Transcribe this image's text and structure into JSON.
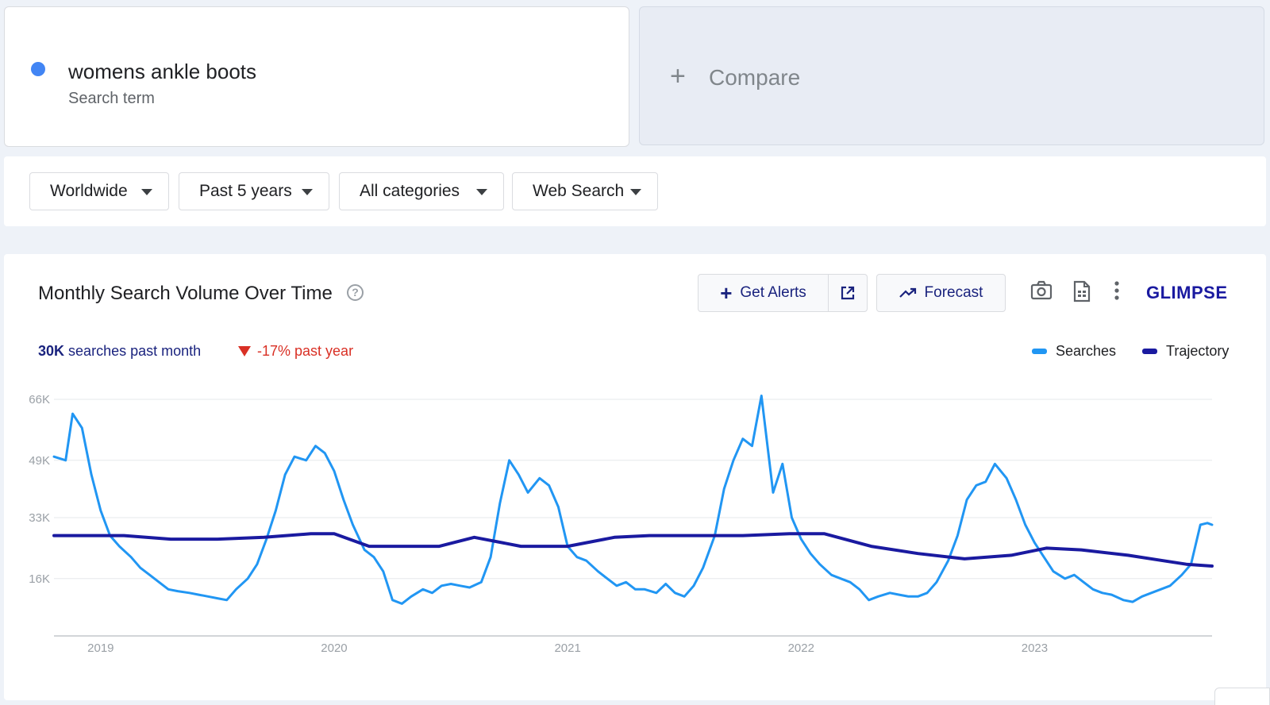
{
  "search_term": {
    "title": "womens ankle boots",
    "subtitle": "Search term",
    "dot_color": "#4285f4"
  },
  "compare": {
    "label": "Compare",
    "icon": "plus-icon"
  },
  "filters": [
    {
      "label": "Worldwide"
    },
    {
      "label": "Past 5 years"
    },
    {
      "label": "All categories"
    },
    {
      "label": "Web Search"
    }
  ],
  "chart_panel": {
    "title": "Monthly Search Volume Over Time",
    "get_alerts_label": "Get Alerts",
    "forecast_label": "Forecast",
    "logo": "GLIMPSE",
    "icons": [
      "help-icon",
      "external-link-icon",
      "trending-up-icon",
      "camera-icon",
      "spreadsheet-icon",
      "more-vert-icon"
    ]
  },
  "stats": {
    "month_value": "30K",
    "month_text": "searches past month",
    "year_change": "-17% past year",
    "year_change_color": "#d93025"
  },
  "chart_data": {
    "type": "line",
    "title": "Monthly Search Volume Over Time",
    "xlabel": "",
    "ylabel": "",
    "y_ticks": [
      16000,
      33000,
      49000,
      66000
    ],
    "y_tick_labels": [
      "16K",
      "33K",
      "49K",
      "66K"
    ],
    "ylim": [
      0,
      66000
    ],
    "x_tick_labels": [
      "2019",
      "2020",
      "2021",
      "2022",
      "2023"
    ],
    "x_tick_values": [
      2019.0,
      2020.0,
      2021.0,
      2022.0,
      2023.0
    ],
    "xlim": [
      2018.8,
      2023.76
    ],
    "grid": true,
    "legend_position": "top-right",
    "series": [
      {
        "name": "Searches",
        "color": "#2196f3",
        "x": [
          2018.8,
          2018.85,
          2018.88,
          2018.92,
          2018.96,
          2019.0,
          2019.04,
          2019.08,
          2019.13,
          2019.17,
          2019.21,
          2019.25,
          2019.29,
          2019.33,
          2019.38,
          2019.42,
          2019.46,
          2019.5,
          2019.54,
          2019.58,
          2019.63,
          2019.67,
          2019.71,
          2019.75,
          2019.79,
          2019.83,
          2019.88,
          2019.92,
          2019.96,
          2020.0,
          2020.04,
          2020.08,
          2020.13,
          2020.17,
          2020.21,
          2020.25,
          2020.29,
          2020.33,
          2020.38,
          2020.42,
          2020.46,
          2020.5,
          2020.54,
          2020.58,
          2020.63,
          2020.67,
          2020.71,
          2020.75,
          2020.79,
          2020.83,
          2020.88,
          2020.92,
          2020.96,
          2021.0,
          2021.04,
          2021.08,
          2021.13,
          2021.17,
          2021.21,
          2021.25,
          2021.29,
          2021.33,
          2021.38,
          2021.42,
          2021.46,
          2021.5,
          2021.54,
          2021.58,
          2021.63,
          2021.67,
          2021.71,
          2021.75,
          2021.79,
          2021.83,
          2021.88,
          2021.92,
          2021.96,
          2022.0,
          2022.04,
          2022.08,
          2022.13,
          2022.17,
          2022.21,
          2022.25,
          2022.29,
          2022.33,
          2022.38,
          2022.42,
          2022.46,
          2022.5,
          2022.54,
          2022.58,
          2022.63,
          2022.67,
          2022.71,
          2022.75,
          2022.79,
          2022.83,
          2022.88,
          2022.92,
          2022.96,
          2023.0,
          2023.04,
          2023.08,
          2023.13,
          2023.17,
          2023.21,
          2023.25,
          2023.29,
          2023.33,
          2023.38,
          2023.42,
          2023.46,
          2023.5,
          2023.54,
          2023.58,
          2023.63,
          2023.67,
          2023.71,
          2023.74,
          2023.76
        ],
        "y": [
          50000,
          49000,
          62000,
          58000,
          45000,
          35000,
          28000,
          25000,
          22000,
          19000,
          17000,
          15000,
          13000,
          12500,
          12000,
          11500,
          11000,
          10500,
          10000,
          13000,
          16000,
          20000,
          27000,
          35000,
          45000,
          50000,
          49000,
          53000,
          51000,
          46000,
          38000,
          31000,
          24000,
          22000,
          18000,
          10000,
          9000,
          11000,
          13000,
          12000,
          14000,
          14500,
          14000,
          13500,
          15000,
          22000,
          37000,
          49000,
          45000,
          40000,
          44000,
          42000,
          36000,
          25000,
          22000,
          21000,
          18000,
          16000,
          14000,
          15000,
          13000,
          13000,
          12000,
          14500,
          12000,
          11000,
          14000,
          19000,
          28000,
          41000,
          49000,
          55000,
          53000,
          67000,
          40000,
          48000,
          33000,
          27000,
          23000,
          20000,
          17000,
          16000,
          15000,
          13000,
          10000,
          11000,
          12000,
          11500,
          11000,
          11000,
          12000,
          15000,
          21000,
          28000,
          38000,
          42000,
          43000,
          48000,
          44000,
          38000,
          31000,
          26000,
          22000,
          18000,
          16000,
          17000,
          15000,
          13000,
          12000,
          11500,
          10000,
          9500,
          11000,
          12000,
          13000,
          14000,
          17000,
          20000,
          31000,
          31500,
          31000
        ]
      },
      {
        "name": "Trajectory",
        "color": "#1a1aa0",
        "x": [
          2018.8,
          2018.95,
          2019.1,
          2019.3,
          2019.5,
          2019.7,
          2019.9,
          2020.0,
          2020.15,
          2020.3,
          2020.45,
          2020.6,
          2020.8,
          2021.0,
          2021.2,
          2021.35,
          2021.55,
          2021.75,
          2021.95,
          2022.1,
          2022.3,
          2022.5,
          2022.7,
          2022.9,
          2023.05,
          2023.2,
          2023.4,
          2023.55,
          2023.65,
          2023.76
        ],
        "y": [
          28000,
          28000,
          28000,
          27000,
          27000,
          27500,
          28500,
          28500,
          25000,
          25000,
          25000,
          27500,
          25000,
          25000,
          27500,
          28000,
          28000,
          28000,
          28500,
          28500,
          25000,
          23000,
          21500,
          22500,
          24500,
          24000,
          22500,
          21000,
          20000,
          19500
        ]
      }
    ]
  }
}
